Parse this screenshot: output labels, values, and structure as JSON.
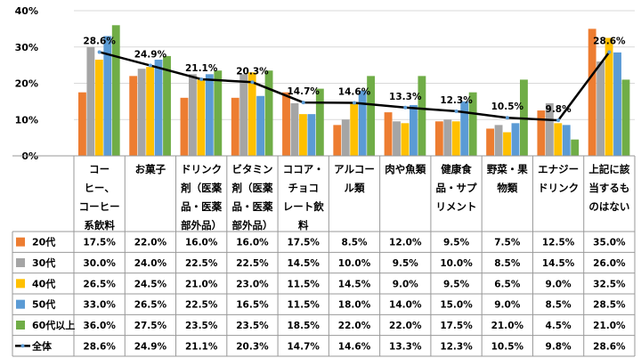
{
  "chart_data": {
    "type": "bar",
    "ylim": [
      0,
      40
    ],
    "yticks": [
      "0%",
      "10%",
      "20%",
      "30%",
      "40%"
    ],
    "grid": true,
    "categories": [
      [
        "コー",
        "ヒー、",
        "コーヒー",
        "系飲料"
      ],
      [
        "お菓子"
      ],
      [
        "ドリンク",
        "剤（医薬",
        "品・医薬",
        "部外品）"
      ],
      [
        "ビタミン",
        "剤（医薬",
        "品・医薬",
        "部外品）"
      ],
      [
        "ココア・",
        "チョコ",
        "レート飲",
        "料"
      ],
      [
        "アルコー",
        "ル類"
      ],
      [
        "肉や魚類"
      ],
      [
        "健康食",
        "品・サプ",
        "リメント"
      ],
      [
        "野菜・果",
        "物類"
      ],
      [
        "エナジー",
        "ドリンク"
      ],
      [
        "上記に該",
        "当するも",
        "のはない"
      ]
    ],
    "series": [
      {
        "name": "20代",
        "color": "#ED7D31",
        "values": [
          17.5,
          22.0,
          16.0,
          16.0,
          17.5,
          8.5,
          12.0,
          9.5,
          7.5,
          12.5,
          35.0
        ]
      },
      {
        "name": "30代",
        "color": "#A5A5A5",
        "values": [
          30.0,
          24.0,
          22.5,
          22.5,
          14.5,
          10.0,
          9.5,
          10.0,
          8.5,
          14.5,
          26.0
        ]
      },
      {
        "name": "40代",
        "color": "#FFC000",
        "values": [
          26.5,
          24.5,
          21.0,
          23.0,
          11.5,
          14.5,
          9.0,
          9.5,
          6.5,
          9.0,
          32.5
        ]
      },
      {
        "name": "50代",
        "color": "#5B9BD5",
        "values": [
          33.0,
          26.5,
          22.5,
          16.5,
          11.5,
          18.0,
          14.0,
          15.0,
          9.0,
          8.5,
          28.5
        ]
      },
      {
        "name": "60代以上",
        "color": "#70AD47",
        "values": [
          36.0,
          27.5,
          23.5,
          23.5,
          18.5,
          22.0,
          22.0,
          17.5,
          21.0,
          4.5,
          21.0
        ]
      }
    ],
    "total": {
      "name": "全体",
      "type": "line",
      "color": "#000000",
      "values": [
        28.6,
        24.9,
        21.1,
        20.3,
        14.7,
        14.6,
        13.3,
        12.3,
        10.5,
        9.8,
        28.6
      ]
    }
  }
}
